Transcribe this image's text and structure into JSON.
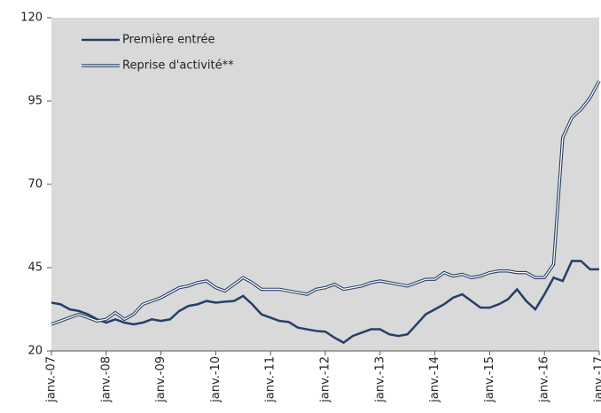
{
  "chart_data": {
    "type": "line",
    "categories": [
      "janv.-07",
      null,
      null,
      null,
      null,
      null,
      "janv.-08",
      null,
      null,
      null,
      null,
      null,
      "janv.-09",
      null,
      null,
      null,
      null,
      null,
      "janv.-10",
      null,
      null,
      null,
      null,
      null,
      "janv.-11",
      null,
      null,
      null,
      null,
      null,
      "janv.-12",
      null,
      null,
      null,
      null,
      null,
      "janv.-13",
      null,
      null,
      null,
      null,
      null,
      "janv.-14",
      null,
      null,
      null,
      null,
      null,
      "janv.-15",
      null,
      null,
      null,
      null,
      null,
      "janv.-16",
      null,
      null,
      null,
      null,
      null,
      "janv.-17"
    ],
    "series": [
      {
        "name": "Première entrée",
        "color": "#263f68",
        "style": "solid",
        "values": [
          34.5,
          34,
          32.5,
          32,
          31,
          29.5,
          28.5,
          29.5,
          28.5,
          28,
          28.5,
          29.5,
          29,
          29.5,
          32,
          33.5,
          34,
          35,
          34.5,
          34.8,
          35,
          36.5,
          34,
          31,
          30,
          29,
          28.7,
          27,
          26.5,
          26,
          25.8,
          24,
          22.5,
          24.5,
          25.5,
          26.5,
          26.5,
          25,
          24.5,
          25,
          28,
          31,
          32.5,
          34,
          36,
          37,
          35,
          33,
          33,
          34,
          35.5,
          38.5,
          35,
          32.5,
          37,
          42,
          41,
          47,
          47,
          44.5,
          44.5
        ]
      },
      {
        "name": "Reprise d'activité**",
        "color": "#263f68",
        "style": "double",
        "values": [
          28,
          29,
          30,
          31,
          30,
          29,
          29.5,
          31.5,
          29.5,
          31,
          34,
          35,
          36,
          37.5,
          39,
          39.5,
          40.5,
          41,
          39,
          38,
          40,
          42,
          40.5,
          38.5,
          38.5,
          38.5,
          38,
          37.5,
          37,
          38.5,
          39,
          40,
          38.5,
          39,
          39.5,
          40.5,
          41,
          40.5,
          40,
          39.5,
          40.5,
          41.5,
          41.5,
          43.5,
          42.5,
          43,
          42,
          42.5,
          43.5,
          44,
          44,
          43.5,
          43.5,
          42,
          42,
          46,
          84,
          90,
          92.5,
          96,
          101
        ]
      }
    ],
    "ylim": [
      20,
      120
    ],
    "yticks": [
      20,
      45,
      70,
      95,
      120
    ],
    "plot_background": "#d9d9d9"
  }
}
